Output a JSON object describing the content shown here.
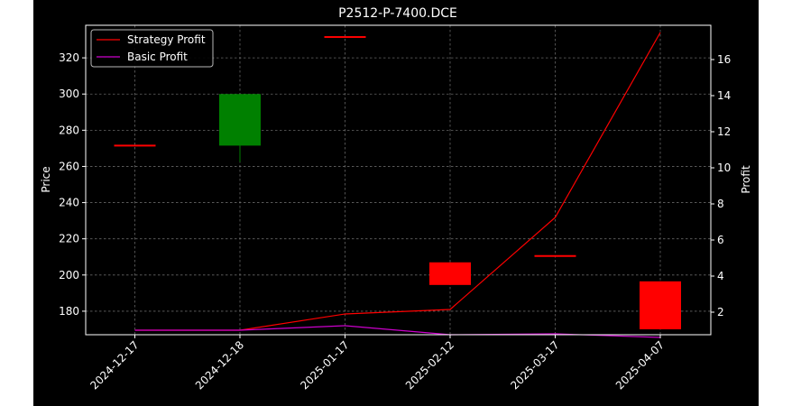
{
  "chart_data": {
    "type": "candlestick+line",
    "title": "P2512-P-7400.DCE",
    "ylabel": "Price",
    "y2label": "Profit",
    "categories": [
      "2024-12-17",
      "2024-12-18",
      "2025-01-17",
      "2025-02-12",
      "2025-03-17",
      "2025-04-07"
    ],
    "ylim": [
      167,
      338
    ],
    "y2lim": [
      0.75,
      17.9
    ],
    "yticks": [
      180,
      200,
      220,
      240,
      260,
      280,
      300,
      320
    ],
    "y2ticks": [
      2,
      4,
      6,
      8,
      10,
      12,
      14,
      16
    ],
    "grid": true,
    "legend_position": "top-left",
    "candles": [
      {
        "date": "2024-12-17",
        "open": 271.5,
        "high": 271.5,
        "low": 271.5,
        "close": 271.5,
        "color": "#ff0000"
      },
      {
        "date": "2024-12-18",
        "open": 271.5,
        "high": 300,
        "low": 262.5,
        "close": 300,
        "color": "#008000"
      },
      {
        "date": "2025-01-17",
        "open": 331.5,
        "high": 331.5,
        "low": 331.5,
        "close": 331.5,
        "color": "#ff0000"
      },
      {
        "date": "2025-02-12",
        "open": 207,
        "high": 207,
        "low": 194.5,
        "close": 194.5,
        "color": "#ff0000"
      },
      {
        "date": "2025-03-17",
        "open": 210.5,
        "high": 210.5,
        "low": 210.5,
        "close": 210.5,
        "color": "#ff0000"
      },
      {
        "date": "2025-04-07",
        "open": 196.5,
        "high": 196.5,
        "low": 170,
        "close": 170,
        "color": "#ff0000"
      }
    ],
    "series": [
      {
        "name": "Strategy Profit",
        "color": "#ff0000",
        "values": [
          1.0,
          1.0,
          1.9,
          2.15,
          7.25,
          17.5
        ]
      },
      {
        "name": "Basic Profit",
        "color": "#cc00cc",
        "values": [
          1.0,
          1.0,
          1.25,
          0.75,
          0.8,
          0.6
        ]
      }
    ]
  }
}
